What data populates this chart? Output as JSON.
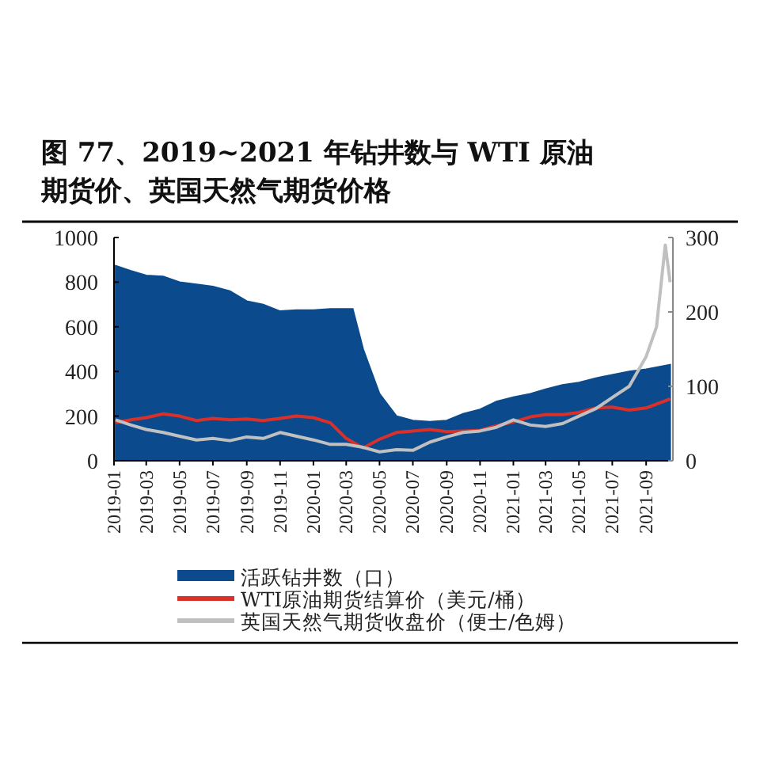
{
  "chart_data": {
    "type": "area",
    "title": "图 77、2019~2021 年钻井数与 WTI 原油期货价、英国天然气期货价格",
    "xlim": [
      "2019-01-01",
      "2021-10-20"
    ],
    "xticks": [
      "2019-01",
      "2019-03",
      "2019-05",
      "2019-07",
      "2019-09",
      "2019-11",
      "2020-01",
      "2020-03",
      "2020-05",
      "2020-07",
      "2020-09",
      "2020-11",
      "2021-01",
      "2021-03",
      "2021-05",
      "2021-07",
      "2021-09"
    ],
    "ylim": [
      0,
      1000
    ],
    "yticks": [
      0,
      200,
      400,
      600,
      800,
      1000
    ],
    "y2lim": [
      0,
      300
    ],
    "y2ticks": [
      0,
      100,
      200,
      300
    ],
    "legend": "bottom",
    "series": [
      {
        "name": "活跃钻井数（口）",
        "type": "area",
        "color": "#0b4a8c",
        "x": [
          "2019-01-04",
          "2019-02-01",
          "2019-03-01",
          "2019-04-01",
          "2019-05-01",
          "2019-06-01",
          "2019-07-01",
          "2019-08-01",
          "2019-09-01",
          "2019-10-01",
          "2019-11-01",
          "2019-12-01",
          "2020-01-01",
          "2020-02-01",
          "2020-03-13",
          "2020-04-01",
          "2020-05-01",
          "2020-06-01",
          "2020-07-01",
          "2020-08-01",
          "2020-09-01",
          "2020-10-01",
          "2020-11-01",
          "2020-12-01",
          "2021-01-01",
          "2021-02-01",
          "2021-03-01",
          "2021-04-01",
          "2021-05-01",
          "2021-06-01",
          "2021-07-01",
          "2021-08-01",
          "2021-09-01",
          "2021-10-15"
        ],
        "values": [
          873,
          850,
          830,
          825,
          800,
          790,
          780,
          760,
          715,
          700,
          670,
          675,
          675,
          680,
          680,
          500,
          300,
          200,
          180,
          175,
          180,
          210,
          230,
          265,
          285,
          300,
          320,
          340,
          350,
          370,
          385,
          400,
          410,
          430
        ]
      },
      {
        "name": "WTI原油期货结算价（美元/桶）",
        "type": "line",
        "axis": "y2",
        "color": "#d9312a",
        "x": [
          "2019-01-04",
          "2019-02-01",
          "2019-03-01",
          "2019-04-01",
          "2019-05-01",
          "2019-06-01",
          "2019-07-01",
          "2019-08-01",
          "2019-09-01",
          "2019-10-01",
          "2019-11-01",
          "2019-12-01",
          "2020-01-01",
          "2020-02-01",
          "2020-03-01",
          "2020-04-01",
          "2020-05-01",
          "2020-06-01",
          "2020-07-01",
          "2020-08-01",
          "2020-09-01",
          "2020-10-01",
          "2020-11-01",
          "2020-12-01",
          "2021-01-01",
          "2021-02-01",
          "2021-03-01",
          "2021-04-01",
          "2021-05-01",
          "2021-06-01",
          "2021-07-01",
          "2021-08-01",
          "2021-09-01",
          "2021-10-15"
        ],
        "values": [
          51,
          55,
          58,
          63,
          60,
          54,
          57,
          55,
          56,
          54,
          57,
          60,
          58,
          51,
          30,
          17,
          29,
          38,
          40,
          42,
          39,
          40,
          41,
          47,
          52,
          59,
          62,
          62,
          65,
          71,
          72,
          68,
          71,
          83
        ]
      },
      {
        "name": "英国天然气期货收盘价（便士/色姆）",
        "type": "line",
        "axis": "y2",
        "color": "#c0c0c0",
        "x": [
          "2019-01-04",
          "2019-02-01",
          "2019-03-01",
          "2019-04-01",
          "2019-05-01",
          "2019-06-01",
          "2019-07-01",
          "2019-08-01",
          "2019-09-01",
          "2019-10-01",
          "2019-11-01",
          "2019-12-01",
          "2020-01-01",
          "2020-02-01",
          "2020-03-01",
          "2020-04-01",
          "2020-05-01",
          "2020-06-01",
          "2020-07-01",
          "2020-08-01",
          "2020-09-01",
          "2020-10-01",
          "2020-11-01",
          "2020-12-01",
          "2021-01-01",
          "2021-02-01",
          "2021-03-01",
          "2021-04-01",
          "2021-05-01",
          "2021-06-01",
          "2021-07-01",
          "2021-08-01",
          "2021-09-01",
          "2021-09-20",
          "2021-10-06",
          "2021-10-15"
        ],
        "values": [
          55,
          48,
          42,
          38,
          33,
          28,
          30,
          27,
          32,
          30,
          38,
          33,
          28,
          22,
          22,
          18,
          12,
          15,
          14,
          25,
          32,
          38,
          40,
          45,
          55,
          48,
          46,
          50,
          60,
          70,
          85,
          100,
          140,
          180,
          290,
          240
        ]
      }
    ]
  }
}
